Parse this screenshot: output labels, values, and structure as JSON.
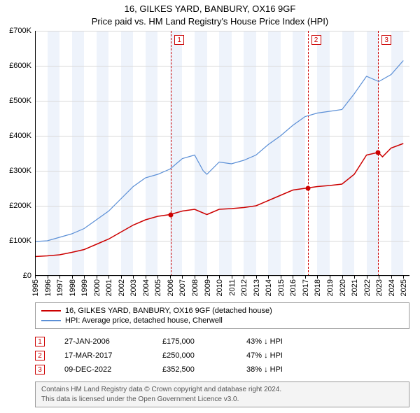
{
  "title": {
    "line1": "16, GILKES YARD, BANBURY, OX16 9GF",
    "line2": "Price paid vs. HM Land Registry's House Price Index (HPI)"
  },
  "chart": {
    "type": "line",
    "x_years": [
      1995,
      1996,
      1997,
      1998,
      1999,
      2000,
      2001,
      2002,
      2003,
      2004,
      2005,
      2006,
      2007,
      2008,
      2009,
      2010,
      2011,
      2012,
      2013,
      2014,
      2015,
      2016,
      2017,
      2018,
      2019,
      2020,
      2021,
      2022,
      2023,
      2024,
      2025
    ],
    "xlim": [
      1995,
      2025.5
    ],
    "ylim": [
      0,
      700000
    ],
    "ytick_step": 100000,
    "yticks": [
      "£0",
      "£100K",
      "£200K",
      "£300K",
      "£400K",
      "£500K",
      "£600K",
      "£700K"
    ],
    "grid_color": "#d9d9d9",
    "shade_color": "#eef3fb",
    "background_color": "#ffffff",
    "series": [
      {
        "name": "property",
        "label": "16, GILKES YARD, BANBURY, OX16 9GF (detached house)",
        "color": "#cc0000",
        "line_width": 1.5,
        "data": [
          [
            1995,
            55000
          ],
          [
            1996,
            57000
          ],
          [
            1997,
            60000
          ],
          [
            1998,
            67000
          ],
          [
            1999,
            75000
          ],
          [
            2000,
            90000
          ],
          [
            2001,
            105000
          ],
          [
            2002,
            125000
          ],
          [
            2003,
            145000
          ],
          [
            2004,
            160000
          ],
          [
            2005,
            170000
          ],
          [
            2006,
            175000
          ],
          [
            2007,
            185000
          ],
          [
            2008,
            190000
          ],
          [
            2009,
            175000
          ],
          [
            2010,
            190000
          ],
          [
            2011,
            192000
          ],
          [
            2012,
            195000
          ],
          [
            2013,
            200000
          ],
          [
            2014,
            215000
          ],
          [
            2015,
            230000
          ],
          [
            2016,
            245000
          ],
          [
            2017,
            250000
          ],
          [
            2018,
            255000
          ],
          [
            2019,
            258000
          ],
          [
            2020,
            262000
          ],
          [
            2021,
            290000
          ],
          [
            2022,
            345000
          ],
          [
            2022.95,
            352500
          ],
          [
            2023.3,
            340000
          ],
          [
            2024,
            365000
          ],
          [
            2025,
            378000
          ]
        ]
      },
      {
        "name": "hpi",
        "label": "HPI: Average price, detached house, Cherwell",
        "color": "#5b8fd6",
        "line_width": 1.2,
        "data": [
          [
            1995,
            98000
          ],
          [
            1996,
            100000
          ],
          [
            1997,
            110000
          ],
          [
            1998,
            120000
          ],
          [
            1999,
            135000
          ],
          [
            2000,
            160000
          ],
          [
            2001,
            185000
          ],
          [
            2002,
            220000
          ],
          [
            2003,
            255000
          ],
          [
            2004,
            280000
          ],
          [
            2005,
            290000
          ],
          [
            2006,
            305000
          ],
          [
            2007,
            335000
          ],
          [
            2008,
            345000
          ],
          [
            2008.7,
            300000
          ],
          [
            2009,
            290000
          ],
          [
            2010,
            325000
          ],
          [
            2011,
            320000
          ],
          [
            2012,
            330000
          ],
          [
            2013,
            345000
          ],
          [
            2014,
            375000
          ],
          [
            2015,
            400000
          ],
          [
            2016,
            430000
          ],
          [
            2017,
            455000
          ],
          [
            2018,
            465000
          ],
          [
            2019,
            470000
          ],
          [
            2020,
            475000
          ],
          [
            2021,
            520000
          ],
          [
            2022,
            570000
          ],
          [
            2023,
            555000
          ],
          [
            2024,
            575000
          ],
          [
            2025,
            615000
          ]
        ]
      }
    ],
    "markers": [
      {
        "n": "1",
        "x": 2006.07,
        "y": 175000
      },
      {
        "n": "2",
        "x": 2017.21,
        "y": 250000
      },
      {
        "n": "3",
        "x": 2022.94,
        "y": 352500
      }
    ]
  },
  "legend": {
    "items": [
      {
        "color": "#cc0000",
        "label": "16, GILKES YARD, BANBURY, OX16 9GF (detached house)"
      },
      {
        "color": "#5b8fd6",
        "label": "HPI: Average price, detached house, Cherwell"
      }
    ]
  },
  "transactions": [
    {
      "n": "1",
      "date": "27-JAN-2006",
      "price": "£175,000",
      "delta": "43% ↓ HPI"
    },
    {
      "n": "2",
      "date": "17-MAR-2017",
      "price": "£250,000",
      "delta": "47% ↓ HPI"
    },
    {
      "n": "3",
      "date": "09-DEC-2022",
      "price": "£352,500",
      "delta": "38% ↓ HPI"
    }
  ],
  "footer": {
    "line1": "Contains HM Land Registry data © Crown copyright and database right 2024.",
    "line2": "This data is licensed under the Open Government Licence v3.0."
  }
}
